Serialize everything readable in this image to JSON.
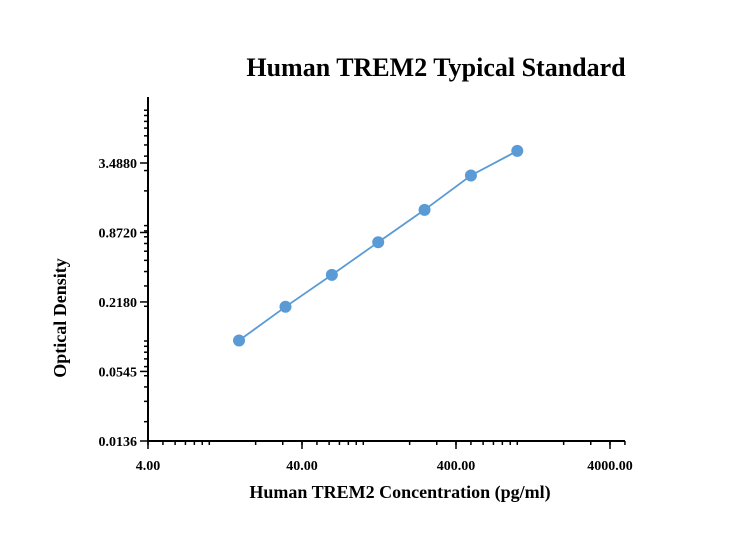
{
  "chart_data": {
    "type": "line",
    "title": "Human TREM2 Typical Standard",
    "xlabel": "Human TREM2 Concentration (pg/ml)",
    "ylabel": "Optical Density",
    "x_scale": "log",
    "y_scale": "log",
    "xlim": [
      4.0,
      5000.0
    ],
    "ylim": [
      0.0136,
      14.0
    ],
    "x_ticks": [
      4.0,
      40.0,
      400.0,
      4000.0
    ],
    "x_tick_labels": [
      "4.00",
      "40.00",
      "400.00",
      "4000.00"
    ],
    "y_ticks": [
      0.0136,
      0.0545,
      0.218,
      0.872,
      3.488
    ],
    "y_tick_labels": [
      "0.0136",
      "0.0545",
      "0.2180",
      "0.8720",
      "3.4880"
    ],
    "grid": false,
    "series": [
      {
        "color": "#5b9bd5",
        "x": [
          15.6,
          31.25,
          62.5,
          125,
          250,
          500,
          1000
        ],
        "y": [
          0.101,
          0.198,
          0.374,
          0.718,
          1.37,
          2.72,
          4.44
        ]
      }
    ]
  }
}
